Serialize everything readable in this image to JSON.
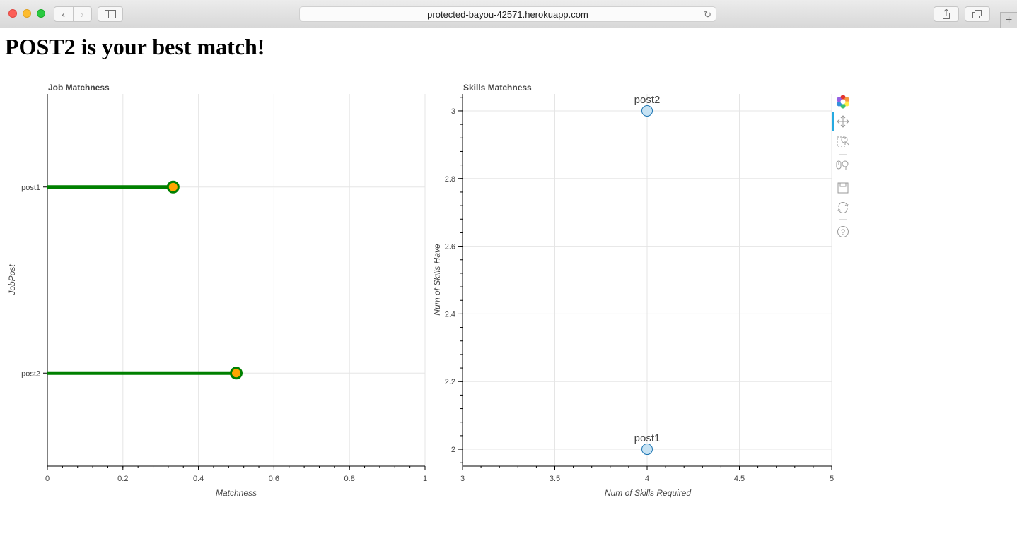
{
  "browser": {
    "url": "protected-bayou-42571.herokuapp.com"
  },
  "page": {
    "heading": "POST2 is your best match!"
  },
  "toolbar": {
    "tools": [
      "bokeh-logo-icon",
      "pan-icon",
      "box-zoom-icon",
      "wheel-zoom-icon",
      "save-icon",
      "reset-icon",
      "help-icon"
    ]
  },
  "chart_data": [
    {
      "type": "lollipop",
      "title": "Job Matchness",
      "xlabel": "Matchness",
      "ylabel": "JobPost",
      "xlim": [
        0,
        1
      ],
      "x_ticks": [
        "0",
        "0.2",
        "0.4",
        "0.6",
        "0.8",
        "1"
      ],
      "categories": [
        "post1",
        "post2"
      ],
      "values": [
        0.333,
        0.5
      ],
      "line_color": "#008000",
      "marker_fill": "#ffa500",
      "marker_line": "#008000",
      "grid": true
    },
    {
      "type": "scatter",
      "title": "Skills Matchness",
      "xlabel": "Num of Skills Required",
      "ylabel": "Num of Skills Have",
      "xlim": [
        3,
        5
      ],
      "ylim": [
        1.95,
        3.05
      ],
      "x_ticks": [
        "3",
        "3.5",
        "4",
        "4.5",
        "5"
      ],
      "y_ticks": [
        "2",
        "2.2",
        "2.4",
        "2.6",
        "2.8",
        "3"
      ],
      "points": [
        {
          "label": "post1",
          "x": 4,
          "y": 2
        },
        {
          "label": "post2",
          "x": 4,
          "y": 3
        }
      ],
      "marker_fill": "#c6e2f3",
      "marker_line": "#1f77b4",
      "grid": true
    }
  ]
}
